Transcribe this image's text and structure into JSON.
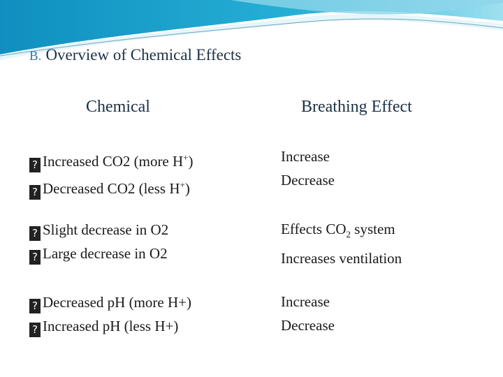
{
  "slide": {
    "number": "B.",
    "title": "Overview of Chemical Effects"
  },
  "headers": {
    "left": "Chemical",
    "right": "Breathing Effect"
  },
  "bullet_glyph": "?",
  "groups": [
    {
      "chemicals": [
        {
          "text": "Increased CO2 (more H",
          "sup": "+",
          "tail": ")"
        },
        {
          "text": "Decreased CO2 (less H",
          "sup": "+",
          "tail": ")"
        }
      ],
      "effects": [
        {
          "text": "Increase"
        },
        {
          "text": "Decrease"
        }
      ]
    },
    {
      "chemicals": [
        {
          "text": "Slight decrease in O2"
        },
        {
          "text": "Large decrease in O2"
        }
      ],
      "effects": [
        {
          "text": "Effects CO",
          "sub": "2",
          "tail": " system"
        },
        {
          "text": "Increases ventilation"
        }
      ]
    },
    {
      "chemicals": [
        {
          "text": "Decreased pH (more H+)"
        },
        {
          "text": "Increased pH (less H+)"
        }
      ],
      "effects": [
        {
          "text": "Increase"
        },
        {
          "text": "Decrease"
        }
      ]
    }
  ],
  "colors": {
    "banner_dark": "#1aa0c8",
    "banner_light": "#7fd3ea",
    "title": "#1b3146",
    "number": "#3a78b0"
  }
}
